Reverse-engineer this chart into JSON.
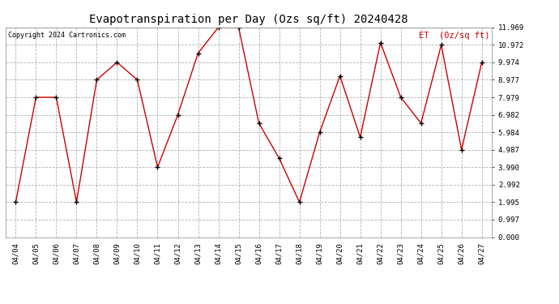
{
  "title": "Evapotranspiration per Day (Ozs sq/ft) 20240428",
  "copyright": "Copyright 2024 Cartronics.com",
  "legend_label": "ET  (0z/sq ft)",
  "dates": [
    "04/04",
    "04/05",
    "04/06",
    "04/07",
    "04/08",
    "04/09",
    "04/10",
    "04/11",
    "04/12",
    "04/13",
    "04/14",
    "04/15",
    "04/16",
    "04/17",
    "04/18",
    "04/19",
    "04/20",
    "04/21",
    "04/22",
    "04/23",
    "04/24",
    "04/25",
    "04/26",
    "04/27"
  ],
  "values": [
    1.995,
    7.979,
    7.979,
    1.995,
    8.977,
    9.974,
    8.977,
    3.99,
    6.982,
    10.5,
    11.969,
    11.969,
    6.5,
    4.5,
    1.995,
    5.984,
    9.2,
    5.7,
    11.1,
    7.979,
    6.5,
    10.972,
    4.987,
    9.974
  ],
  "line_color": "#cc0000",
  "marker_color": "#000000",
  "bg_color": "#ffffff",
  "grid_color": "#aaaaaa",
  "yticks": [
    0.0,
    0.997,
    1.995,
    2.992,
    3.99,
    4.987,
    5.984,
    6.982,
    7.979,
    8.977,
    9.974,
    10.972,
    11.969
  ],
  "ymin": 0.0,
  "ymax": 11.969
}
